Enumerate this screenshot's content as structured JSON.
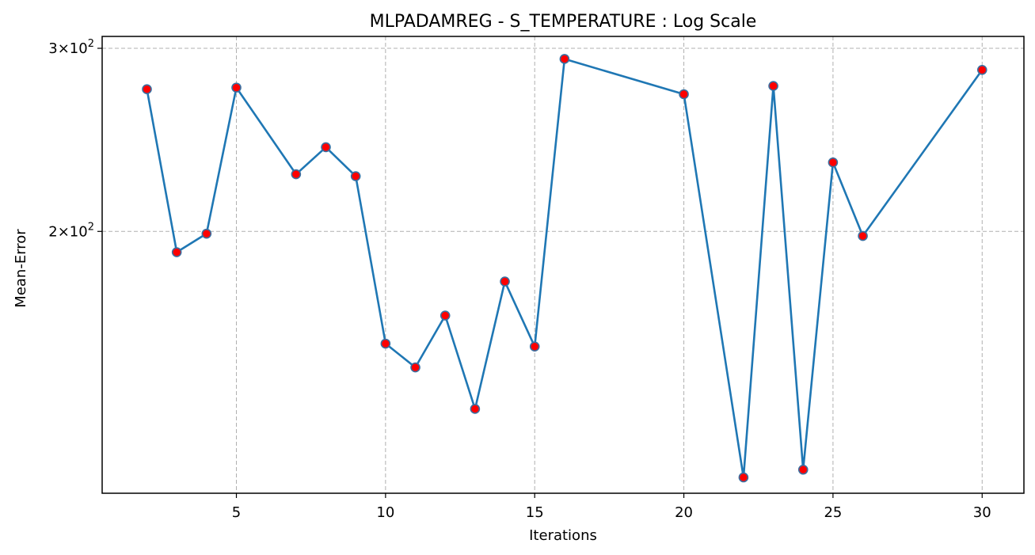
{
  "chart_data": {
    "type": "line",
    "title": "MLPADAMREG - S_TEMPERATURE : Log Scale",
    "xlabel": "Iterations",
    "ylabel": "Mean-Error",
    "yscale": "log",
    "grid": true,
    "xlim": [
      0.5,
      31.4
    ],
    "ylim": [
      112,
      308
    ],
    "x_ticks": [
      5,
      10,
      15,
      20,
      25,
      30
    ],
    "x_tick_labels": [
      "5",
      "10",
      "15",
      "20",
      "25",
      "30"
    ],
    "y_ticks": [
      200,
      300
    ],
    "y_tick_labels": [
      {
        "base": "2",
        "mult": "×",
        "exp_base": "10",
        "exp": "2"
      },
      {
        "base": "3",
        "mult": "×",
        "exp_base": "10",
        "exp": "2"
      }
    ],
    "series": [
      {
        "x": [
          2,
          3,
          4,
          5,
          7,
          8,
          9,
          10,
          11,
          12,
          13,
          14,
          15,
          16,
          20,
          22,
          23,
          24,
          25,
          26,
          30
        ],
        "values": [
          274,
          191,
          199,
          275,
          227,
          241,
          226,
          156,
          148,
          166,
          135,
          179,
          155,
          293,
          271,
          116,
          276,
          118,
          233,
          198,
          286
        ],
        "line_color": "#1f77b4",
        "marker_fill": "#ff0000",
        "marker_edge": "#3b6fa0"
      }
    ]
  }
}
